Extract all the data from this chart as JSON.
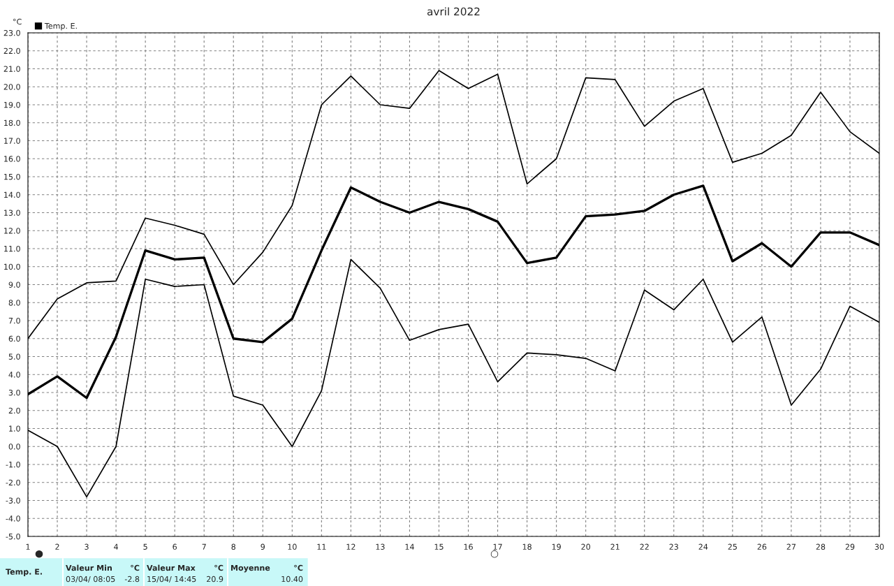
{
  "chart_data": {
    "type": "line",
    "title": "avril 2022",
    "ylabel": "°C",
    "x": [
      1,
      2,
      3,
      4,
      5,
      6,
      7,
      8,
      9,
      10,
      11,
      12,
      13,
      14,
      15,
      16,
      17,
      18,
      19,
      20,
      21,
      22,
      23,
      24,
      25,
      26,
      27,
      28,
      29,
      30
    ],
    "series": [
      {
        "color": "#000000",
        "values": [
          6.0,
          8.2,
          9.1,
          9.2,
          12.7,
          12.3,
          11.8,
          9.0,
          10.8,
          13.4,
          19.0,
          20.6,
          19.0,
          18.8,
          20.9,
          19.9,
          20.7,
          14.6,
          16.0,
          20.5,
          20.4,
          17.8,
          19.2,
          19.9,
          15.8,
          16.3,
          17.3,
          19.7,
          17.5,
          16.3
        ]
      },
      {
        "name": "Temp. E.",
        "color": "#000000",
        "values": [
          2.9,
          3.9,
          2.7,
          6.1,
          10.9,
          10.4,
          10.5,
          6.0,
          5.8,
          7.1,
          10.9,
          14.4,
          13.6,
          13.0,
          13.6,
          13.2,
          12.5,
          10.2,
          10.5,
          12.8,
          12.9,
          13.1,
          14.0,
          14.5,
          10.3,
          11.3,
          10.0,
          11.9,
          11.9,
          11.2
        ]
      },
      {
        "color": "#000000",
        "values": [
          0.9,
          0.0,
          -2.8,
          0.0,
          9.3,
          8.9,
          9.0,
          2.8,
          2.3,
          0.0,
          3.1,
          10.4,
          8.8,
          5.9,
          6.5,
          6.8,
          3.6,
          5.2,
          5.1,
          4.9,
          4.2,
          8.7,
          7.6,
          9.3,
          5.8,
          7.2,
          2.3,
          4.3,
          7.8,
          6.9
        ]
      }
    ],
    "xlim": [
      1,
      30
    ],
    "xticks": [
      1,
      2,
      3,
      4,
      5,
      6,
      7,
      8,
      9,
      10,
      11,
      12,
      13,
      14,
      15,
      16,
      17,
      18,
      19,
      20,
      21,
      22,
      23,
      24,
      25,
      26,
      27,
      28,
      29,
      30
    ],
    "ylim": [
      -5,
      23
    ],
    "yticks": [
      {
        "value": -5,
        "label": "-5.0"
      },
      {
        "value": -4,
        "label": "-4.0"
      },
      {
        "value": -3,
        "label": "-3.0"
      },
      {
        "value": -2,
        "label": "-2.0"
      },
      {
        "value": -1,
        "label": "-1.0"
      },
      {
        "value": 0,
        "label": "0.0"
      },
      {
        "value": 1,
        "label": "1.0"
      },
      {
        "value": 2,
        "label": "2.0"
      },
      {
        "value": 3,
        "label": "3.0"
      },
      {
        "value": 4,
        "label": "4.0"
      },
      {
        "value": 5,
        "label": "5.0"
      },
      {
        "value": 6,
        "label": "6.0"
      },
      {
        "value": 7,
        "label": "7.0"
      },
      {
        "value": 8,
        "label": "8.0"
      },
      {
        "value": 9,
        "label": "9.0"
      },
      {
        "value": 10,
        "label": "10.0"
      },
      {
        "value": 11,
        "label": "11.0"
      },
      {
        "value": 12,
        "label": "12.0"
      },
      {
        "value": 13,
        "label": "13.0"
      },
      {
        "value": 14,
        "label": "14.0"
      },
      {
        "value": 15,
        "label": "15.0"
      },
      {
        "value": 16,
        "label": "16.0"
      },
      {
        "value": 17,
        "label": "17.0"
      },
      {
        "value": 18,
        "label": "18.0"
      },
      {
        "value": 19,
        "label": "19.0"
      },
      {
        "value": 20,
        "label": "20.0"
      },
      {
        "value": 21,
        "label": "21.0"
      },
      {
        "value": 22,
        "label": "22.0"
      },
      {
        "value": 23,
        "label": "23.0"
      }
    ],
    "grid": true,
    "legend": "top left",
    "marker": "none",
    "line_style": "solid",
    "annotations": [
      "●",
      "○",
      "Temp. E.",
      "Valeur Min",
      "°C",
      "03/04/ 08:05",
      "-2.8",
      "Valeur Max",
      "°C",
      "15/04/ 14:45",
      "20.9",
      "Moyenne",
      "°C",
      "10.40"
    ]
  }
}
